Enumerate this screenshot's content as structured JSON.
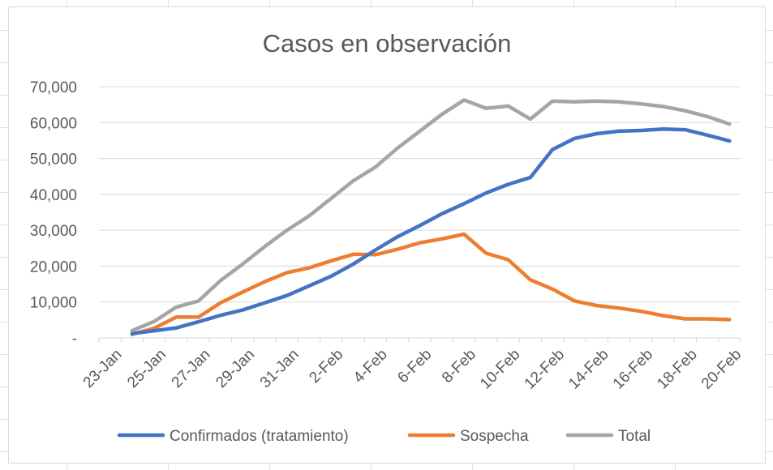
{
  "chart_data": {
    "type": "line",
    "title": "Casos en observación",
    "xlabel": "",
    "ylabel": "",
    "ylim": [
      0,
      70000
    ],
    "y_ticks": [
      0,
      10000,
      20000,
      30000,
      40000,
      50000,
      60000,
      70000
    ],
    "y_tick_labels": [
      "-",
      "10,000",
      "20,000",
      "30,000",
      "40,000",
      "50,000",
      "60,000",
      "70,000"
    ],
    "x_tick_labels": [
      "23-Jan",
      "25-Jan",
      "27-Jan",
      "29-Jan",
      "31-Jan",
      "2-Feb",
      "4-Feb",
      "6-Feb",
      "8-Feb",
      "10-Feb",
      "12-Feb",
      "14-Feb",
      "16-Feb",
      "18-Feb",
      "20-Feb"
    ],
    "x": [
      "24-Jan",
      "25-Jan",
      "26-Jan",
      "27-Jan",
      "28-Jan",
      "29-Jan",
      "30-Jan",
      "31-Jan",
      "1-Feb",
      "2-Feb",
      "3-Feb",
      "4-Feb",
      "5-Feb",
      "6-Feb",
      "7-Feb",
      "8-Feb",
      "9-Feb",
      "10-Feb",
      "11-Feb",
      "12-Feb",
      "13-Feb",
      "14-Feb",
      "15-Feb",
      "16-Feb",
      "17-Feb",
      "18-Feb",
      "19-Feb",
      "20-Feb"
    ],
    "grid": true,
    "legend_position": "bottom",
    "series": [
      {
        "name": "Confirmados (tratamiento)",
        "color": "#4472c4",
        "values": [
          1200,
          2000,
          2800,
          4500,
          6300,
          7800,
          9800,
          11800,
          14500,
          17200,
          20600,
          24500,
          28200,
          31300,
          34600,
          37400,
          40400,
          42800,
          44700,
          52500,
          55600,
          56900,
          57600,
          57800,
          58200,
          58000,
          56500,
          54900
        ]
      },
      {
        "name": "Sospecha",
        "color": "#ed7d31",
        "values": [
          1000,
          2700,
          5800,
          5800,
          9800,
          12800,
          15700,
          18200,
          19500,
          21500,
          23300,
          23200,
          24700,
          26500,
          27600,
          28900,
          23600,
          21800,
          16200,
          13600,
          10300,
          9000,
          8300,
          7400,
          6200,
          5300,
          5300,
          5100
        ]
      },
      {
        "name": "Total",
        "color": "#a5a5a5",
        "values": [
          2000,
          4600,
          8600,
          10300,
          16000,
          20600,
          25500,
          30000,
          34000,
          38900,
          43800,
          47600,
          52900,
          57600,
          62300,
          66300,
          64000,
          64600,
          61000,
          66000,
          65800,
          66000,
          65800,
          65200,
          64500,
          63300,
          61700,
          59600
        ]
      }
    ]
  }
}
